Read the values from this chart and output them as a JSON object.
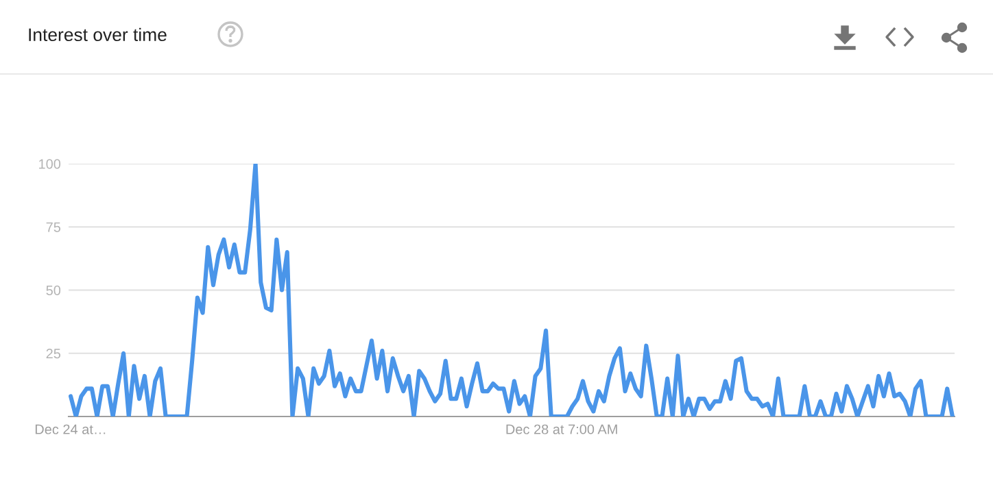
{
  "chart_data": {
    "type": "line",
    "title": "Interest over time",
    "categories": [
      "Dec 24 at…",
      null,
      null,
      null,
      null,
      null,
      null,
      null,
      null,
      null,
      null,
      null,
      null,
      null,
      null,
      null,
      null,
      null,
      null,
      null,
      null,
      null,
      null,
      null,
      null,
      null,
      null,
      null,
      null,
      null,
      null,
      null,
      null,
      null,
      null,
      null,
      null,
      null,
      null,
      null,
      null,
      null,
      null,
      null,
      null,
      null,
      null,
      null,
      null,
      null,
      null,
      null,
      null,
      null,
      null,
      null,
      null,
      null,
      null,
      null,
      null,
      null,
      null,
      null,
      null,
      null,
      null,
      null,
      null,
      null,
      null,
      null,
      null,
      null,
      null,
      null,
      null,
      null,
      null,
      null,
      null,
      null,
      null,
      null,
      null,
      null,
      null,
      null,
      null,
      null,
      null,
      null,
      null,
      "Dec 28 at 7:00 AM",
      null,
      null,
      null,
      null,
      null,
      null,
      null,
      null,
      null,
      null,
      null,
      null,
      null,
      null,
      null,
      null,
      null,
      null,
      null,
      null,
      null,
      null,
      null,
      null,
      null,
      null,
      null,
      null,
      null,
      null,
      null,
      null,
      null,
      null,
      null,
      null,
      null,
      null,
      null,
      null,
      null,
      null,
      null,
      null,
      null,
      null,
      null,
      null,
      null,
      null,
      null,
      null,
      null,
      null,
      null,
      null,
      null,
      null,
      null,
      null,
      null,
      null,
      null,
      null,
      null,
      null,
      null,
      null,
      null,
      null,
      null,
      null,
      null,
      null
    ],
    "series": [
      {
        "color": "#4a95e9",
        "values": [
          8,
          0,
          8,
          11,
          11,
          0,
          12,
          12,
          0,
          13,
          25,
          0,
          20,
          7,
          16,
          0,
          14,
          19,
          0,
          0,
          0,
          0,
          0,
          22,
          47,
          41,
          67,
          52,
          64,
          70,
          59,
          68,
          57,
          57,
          74,
          100,
          53,
          43,
          42,
          70,
          50,
          65,
          0,
          19,
          15,
          0,
          19,
          13,
          16,
          26,
          12,
          17,
          8,
          15,
          10,
          10,
          20,
          30,
          15,
          26,
          10,
          23,
          16,
          10,
          16,
          0,
          18,
          15,
          10,
          6,
          9,
          22,
          7,
          7,
          15,
          4,
          13,
          21,
          10,
          10,
          13,
          11,
          11,
          2,
          14,
          5,
          8,
          0,
          16,
          19,
          34,
          0,
          0,
          0,
          0,
          4,
          7,
          14,
          6,
          2,
          10,
          6,
          16,
          23,
          27,
          10,
          17,
          11,
          8,
          28,
          15,
          0,
          0,
          15,
          0,
          24,
          0,
          7,
          0,
          7,
          7,
          3,
          6,
          6,
          14,
          7,
          22,
          23,
          10,
          7,
          7,
          4,
          5,
          0,
          15,
          0,
          0,
          0,
          0,
          12,
          0,
          0,
          6,
          0,
          0,
          9,
          2,
          12,
          7,
          0,
          6,
          12,
          4,
          16,
          8,
          17,
          8,
          9,
          6,
          0,
          11,
          14,
          0,
          0,
          0,
          0,
          11,
          0
        ]
      }
    ],
    "ylim": [
      0,
      100
    ],
    "yticks": [
      25,
      50,
      75,
      100
    ],
    "grid": "y"
  }
}
